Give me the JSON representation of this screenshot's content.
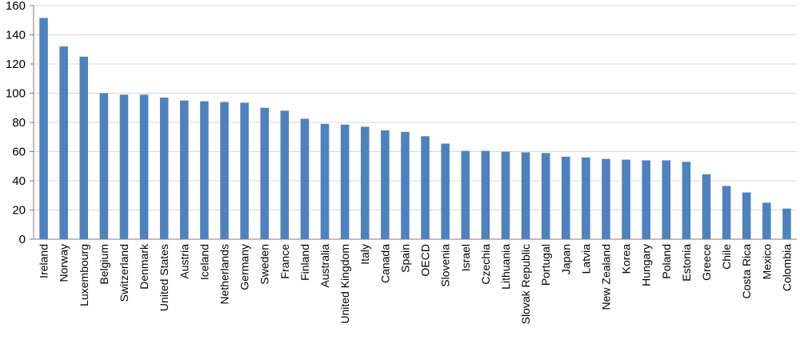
{
  "chart_data": {
    "type": "bar",
    "title": "",
    "xlabel": "",
    "ylabel": "",
    "ylim": [
      0,
      160
    ],
    "yticks": [
      0,
      20,
      40,
      60,
      80,
      100,
      120,
      140,
      160
    ],
    "grid": true,
    "legend": "none",
    "bar_color": "#4f81bd",
    "grid_color": "#d9d9d9",
    "categories": [
      "Ireland",
      "Norway",
      "Luxembourg",
      "Belgium",
      "Switzerland",
      "Denmark",
      "United States",
      "Austria",
      "Iceland",
      "Netherlands",
      "Germany",
      "Sweden",
      "France",
      "Finland",
      "Australia",
      "United Kingdom",
      "Italy",
      "Canada",
      "Spain",
      "OECD",
      "Slovenia",
      "Israel",
      "Czechia",
      "Lithuania",
      "Slovak Republic",
      "Portugal",
      "Japan",
      "Latvia",
      "New Zealand",
      "Korea",
      "Hungary",
      "Poland",
      "Estonia",
      "Greece",
      "Chile",
      "Costa Rica",
      "Mexico",
      "Colombia"
    ],
    "values": [
      151.5,
      132,
      125,
      100,
      99,
      99,
      97,
      95,
      94.5,
      94,
      93.5,
      90,
      88,
      82.5,
      79,
      78.5,
      77,
      74.5,
      73.5,
      70.5,
      65.5,
      60.5,
      60.5,
      60,
      59.5,
      59,
      56.5,
      56,
      55,
      54.5,
      54,
      54,
      53,
      44.5,
      36.5,
      32,
      25,
      21
    ]
  }
}
